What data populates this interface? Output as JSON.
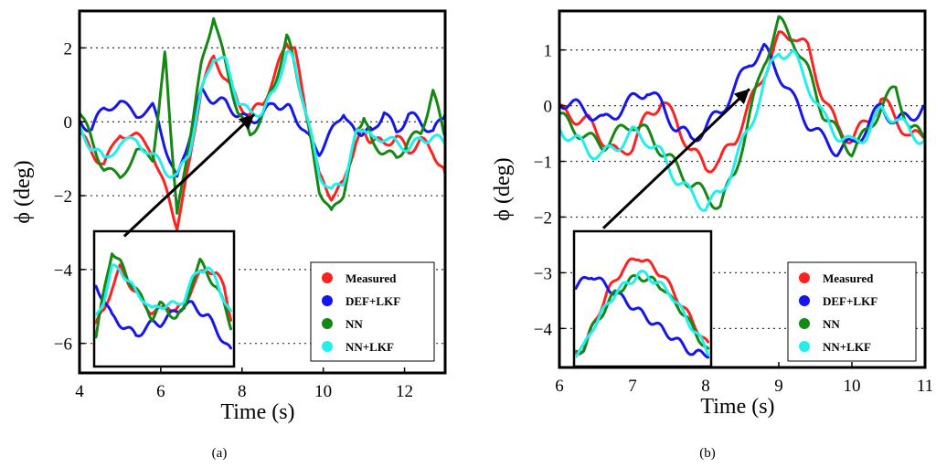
{
  "chart_data": [
    {
      "type": "line",
      "caption": "(a)",
      "xlabel": "Time (s)",
      "ylabel": "ϕ (deg)",
      "xlim": [
        4,
        13
      ],
      "ylim": [
        -6.8,
        3
      ],
      "xticks": [
        4,
        6,
        8,
        10,
        12
      ],
      "yticks": [
        2,
        0,
        -2,
        -4,
        -6
      ],
      "grid": "horizontal",
      "legend_position": "bottom-right",
      "arrow": {
        "from": [
          5.1,
          -3.1
        ],
        "to": [
          8.3,
          0.2
        ]
      },
      "series": [
        {
          "name": "Measured",
          "color": "#ff2020",
          "x": [
            4.0,
            4.3,
            4.6,
            5.0,
            5.4,
            5.8,
            6.1,
            6.4,
            6.7,
            7.0,
            7.3,
            7.6,
            7.9,
            8.2,
            8.5,
            8.8,
            9.1,
            9.3,
            9.6,
            9.9,
            10.2,
            10.5,
            10.8,
            11.0,
            11.2,
            11.5,
            11.8,
            12.1,
            12.4,
            12.7,
            13.0
          ],
          "y": [
            -0.3,
            -0.8,
            -1.2,
            -0.3,
            -0.4,
            -0.8,
            -1.8,
            -2.8,
            -1.2,
            1.0,
            1.7,
            1.2,
            0.5,
            0.2,
            0.5,
            1.2,
            2.2,
            1.9,
            0.2,
            -1.5,
            -2.0,
            -1.7,
            -0.5,
            -0.3,
            -0.5,
            -0.6,
            -0.4,
            -0.8,
            -0.5,
            -0.8,
            -1.4
          ]
        },
        {
          "name": "DEF+LKF",
          "color": "#1515ee",
          "x": [
            4.0,
            4.3,
            4.6,
            5.0,
            5.4,
            5.8,
            6.1,
            6.4,
            6.7,
            7.0,
            7.3,
            7.6,
            7.9,
            8.2,
            8.5,
            8.8,
            9.1,
            9.3,
            9.6,
            9.9,
            10.2,
            10.5,
            10.8,
            11.0,
            11.2,
            11.5,
            11.8,
            12.1,
            12.4,
            12.7,
            13.0
          ],
          "y": [
            0.0,
            -0.2,
            0.4,
            0.5,
            0.2,
            0.4,
            -0.6,
            -1.6,
            -0.4,
            0.8,
            0.6,
            0.5,
            0.2,
            0.0,
            0.2,
            0.5,
            0.4,
            0.2,
            -0.4,
            -0.8,
            -0.3,
            0.3,
            -0.4,
            -0.2,
            -0.3,
            0.3,
            -0.3,
            0.2,
            0.0,
            -0.3,
            0.2
          ]
        },
        {
          "name": "NN",
          "color": "#138813",
          "x": [
            4.0,
            4.3,
            4.6,
            5.0,
            5.4,
            5.8,
            6.1,
            6.2,
            6.4,
            6.7,
            7.0,
            7.3,
            7.6,
            7.9,
            8.2,
            8.5,
            8.8,
            9.1,
            9.3,
            9.6,
            9.9,
            10.2,
            10.5,
            10.8,
            11.0,
            11.2,
            11.5,
            11.8,
            12.1,
            12.4,
            12.7,
            13.0
          ],
          "y": [
            0.3,
            -0.5,
            -1.3,
            -1.5,
            -0.8,
            -1.0,
            1.8,
            0.5,
            -2.6,
            -0.5,
            1.5,
            2.9,
            1.5,
            0.3,
            -0.4,
            0.2,
            1.0,
            2.3,
            1.6,
            0.0,
            -1.8,
            -2.5,
            -1.9,
            -0.4,
            0.2,
            -0.6,
            -0.8,
            -1.0,
            -0.5,
            -0.3,
            0.8,
            -0.4
          ]
        },
        {
          "name": "NN+LKF",
          "color": "#22eeee",
          "x": [
            4.0,
            4.3,
            4.6,
            5.0,
            5.4,
            5.8,
            6.1,
            6.4,
            6.7,
            7.0,
            7.3,
            7.6,
            7.9,
            8.2,
            8.5,
            8.8,
            9.1,
            9.3,
            9.6,
            9.9,
            10.2,
            10.5,
            10.8,
            11.0,
            11.2,
            11.5,
            11.8,
            12.1,
            12.4,
            12.7,
            13.0
          ],
          "y": [
            -0.2,
            -0.7,
            -1.0,
            -0.6,
            -0.5,
            -0.9,
            -1.3,
            -1.5,
            -0.8,
            0.8,
            1.8,
            1.6,
            0.6,
            0.2,
            0.3,
            0.8,
            1.9,
            1.6,
            0.1,
            -1.4,
            -1.9,
            -1.6,
            -0.4,
            -0.1,
            -0.5,
            -0.4,
            -0.6,
            -0.7,
            -0.5,
            -0.4,
            -0.6
          ]
        }
      ],
      "inset_series": [
        {
          "name": "Measured",
          "y": [
            -0.4,
            -0.2,
            0.2,
            0.5,
            0.3,
            0.1,
            -0.1,
            -0.2,
            -0.2,
            -0.1,
            -0.2,
            -0.1,
            0.2,
            0.4,
            0.5,
            0.4,
            0.2,
            -0.4
          ]
        },
        {
          "name": "DEF+LKF",
          "y": [
            0.2,
            0.0,
            -0.3,
            -0.4,
            -0.5,
            -0.6,
            -0.5,
            -0.4,
            -0.4,
            -0.3,
            -0.2,
            -0.1,
            -0.1,
            -0.2,
            -0.3,
            -0.5,
            -0.7,
            -0.9
          ]
        },
        {
          "name": "NN",
          "y": [
            -0.6,
            0.1,
            0.8,
            0.6,
            0.3,
            0.2,
            -0.1,
            -0.3,
            -0.1,
            -0.2,
            -0.3,
            -0.2,
            0.3,
            0.6,
            0.4,
            0.2,
            -0.1,
            -0.5
          ]
        },
        {
          "name": "NN+LKF",
          "y": [
            -0.3,
            0.0,
            0.5,
            0.5,
            0.3,
            0.1,
            0.0,
            -0.2,
            -0.1,
            -0.1,
            -0.1,
            0.0,
            0.3,
            0.5,
            0.5,
            0.3,
            0.0,
            -0.3
          ]
        }
      ]
    },
    {
      "type": "line",
      "caption": "(b)",
      "xlabel": "Time (s)",
      "ylabel": "ϕ (deg)",
      "xlim": [
        6,
        11
      ],
      "ylim": [
        -4.7,
        1.7
      ],
      "xticks": [
        6,
        7,
        8,
        9,
        10,
        11
      ],
      "yticks": [
        1,
        0,
        -1,
        -2,
        -3,
        -4
      ],
      "grid": "horizontal",
      "legend_position": "bottom-right",
      "arrow": {
        "from": [
          6.6,
          -2.2
        ],
        "to": [
          8.6,
          0.3
        ]
      },
      "series": [
        {
          "name": "Measured",
          "color": "#ff2020",
          "x": [
            6.0,
            6.2,
            6.4,
            6.6,
            6.8,
            7.0,
            7.2,
            7.4,
            7.6,
            7.8,
            8.0,
            8.2,
            8.4,
            8.6,
            8.8,
            9.0,
            9.2,
            9.4,
            9.6,
            9.8,
            10.0,
            10.2,
            10.4,
            10.6,
            10.8,
            11.0
          ],
          "y": [
            -0.1,
            -0.2,
            -0.3,
            -0.6,
            -0.9,
            -0.7,
            -0.2,
            0.1,
            -0.3,
            -0.8,
            -1.1,
            -1.0,
            -0.6,
            0.0,
            0.6,
            1.2,
            1.3,
            1.0,
            0.2,
            -0.4,
            -0.6,
            -0.3,
            0.1,
            -0.2,
            -0.6,
            -0.5
          ]
        },
        {
          "name": "DEF+LKF",
          "color": "#1515ee",
          "x": [
            6.0,
            6.2,
            6.4,
            6.6,
            6.8,
            7.0,
            7.2,
            7.4,
            7.6,
            7.8,
            8.0,
            8.2,
            8.4,
            8.6,
            8.8,
            9.0,
            9.2,
            9.4,
            9.6,
            9.8,
            10.0,
            10.2,
            10.4,
            10.6,
            10.8,
            11.0
          ],
          "y": [
            0.1,
            0.0,
            -0.1,
            -0.3,
            -0.1,
            0.1,
            0.3,
            0.0,
            -0.4,
            -0.6,
            -0.4,
            -0.1,
            0.3,
            0.8,
            1.0,
            0.6,
            0.1,
            -0.3,
            -0.6,
            -0.8,
            -0.7,
            -0.4,
            0.0,
            -0.3,
            -0.2,
            0.0
          ]
        },
        {
          "name": "NN",
          "color": "#138813",
          "x": [
            6.0,
            6.2,
            6.4,
            6.6,
            6.8,
            7.0,
            7.2,
            7.4,
            7.6,
            7.8,
            8.0,
            8.2,
            8.4,
            8.6,
            8.8,
            9.0,
            9.2,
            9.4,
            9.6,
            9.8,
            10.0,
            10.2,
            10.4,
            10.6,
            10.8,
            11.0
          ],
          "y": [
            -0.2,
            -0.4,
            -0.6,
            -0.7,
            -0.5,
            -0.3,
            -0.5,
            -0.8,
            -1.1,
            -1.4,
            -1.6,
            -1.8,
            -1.2,
            -0.2,
            0.8,
            1.5,
            1.2,
            0.6,
            -0.1,
            -0.5,
            -0.8,
            -0.5,
            0.0,
            0.3,
            -0.4,
            -0.6
          ]
        },
        {
          "name": "NN+LKF",
          "color": "#22eeee",
          "x": [
            6.0,
            6.2,
            6.4,
            6.6,
            6.8,
            7.0,
            7.2,
            7.4,
            7.6,
            7.8,
            8.0,
            8.2,
            8.4,
            8.6,
            8.8,
            9.0,
            9.2,
            9.4,
            9.6,
            9.8,
            10.0,
            10.2,
            10.4,
            10.6,
            10.8,
            11.0
          ],
          "y": [
            -0.4,
            -0.6,
            -0.8,
            -0.9,
            -0.7,
            -0.5,
            -0.6,
            -0.9,
            -1.3,
            -1.6,
            -1.8,
            -1.6,
            -1.0,
            -0.4,
            0.4,
            1.0,
            0.9,
            0.4,
            -0.2,
            -0.5,
            -0.7,
            -0.5,
            -0.1,
            -0.2,
            -0.5,
            -0.6
          ]
        }
      ],
      "inset_series": [
        {
          "name": "Measured",
          "y": [
            -0.9,
            -0.8,
            -0.5,
            -0.2,
            0.1,
            0.3,
            0.5,
            0.6,
            0.7,
            0.6,
            0.5,
            0.4,
            0.2,
            0.0,
            -0.2,
            -0.4,
            -0.6,
            -0.8
          ]
        },
        {
          "name": "DEF+LKF",
          "y": [
            0.2,
            0.3,
            0.4,
            0.3,
            0.2,
            0.1,
            0.0,
            -0.1,
            -0.2,
            -0.3,
            -0.4,
            -0.5,
            -0.6,
            -0.7,
            -0.8,
            -0.9,
            -0.9,
            -0.9
          ]
        },
        {
          "name": "NN",
          "y": [
            -0.9,
            -0.8,
            -0.5,
            -0.3,
            -0.1,
            0.1,
            0.2,
            0.3,
            0.4,
            0.3,
            0.3,
            0.2,
            0.0,
            -0.1,
            -0.3,
            -0.5,
            -0.7,
            -0.9
          ]
        },
        {
          "name": "NN+LKF",
          "y": [
            -0.9,
            -0.8,
            -0.5,
            -0.3,
            -0.1,
            0.1,
            0.2,
            0.3,
            0.4,
            0.4,
            0.3,
            0.2,
            0.1,
            -0.1,
            -0.3,
            -0.5,
            -0.7,
            -0.9
          ]
        }
      ]
    }
  ]
}
